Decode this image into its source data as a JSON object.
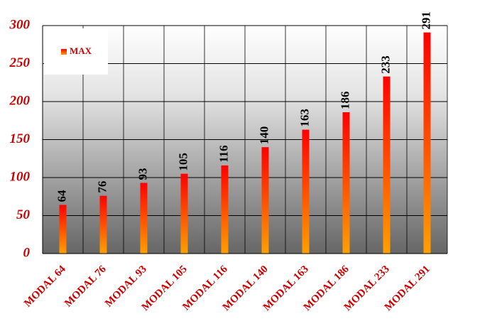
{
  "chart_data": {
    "type": "bar",
    "categories": [
      "MODAL 64",
      "MODAL 76",
      "MODAL 93",
      "MODAL 105",
      "MODAL 116",
      "MODAL 140",
      "MODAL 163",
      "MODAL 186",
      "MODAL 233",
      "MODAL 291"
    ],
    "series": [
      {
        "name": "MAX",
        "color": [
          "#ff0000",
          "#ffa000"
        ],
        "values": [
          64,
          76,
          93,
          105,
          116,
          140,
          163,
          186,
          233,
          291
        ]
      }
    ],
    "ylim": [
      0,
      300
    ],
    "yticks": [
      0,
      50,
      100,
      150,
      200,
      250,
      300
    ],
    "grid": true,
    "legend": "top-left"
  }
}
